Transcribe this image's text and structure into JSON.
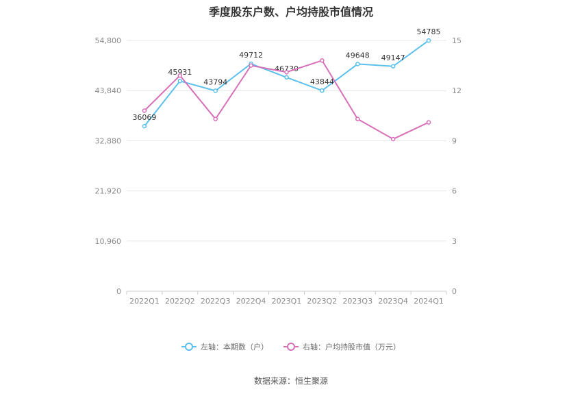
{
  "title": "季度股东户数、户均持股市值情况",
  "source": "数据来源：恒生聚源",
  "legend": [
    {
      "label": "左轴：本期数（户）",
      "color": "#5bc0eb"
    },
    {
      "label": "右轴：户均持股市值（万元）",
      "color": "#d670b8"
    }
  ],
  "chart_data": {
    "type": "line",
    "categories": [
      "2022Q1",
      "2022Q2",
      "2022Q3",
      "2022Q4",
      "2023Q1",
      "2023Q2",
      "2023Q3",
      "2023Q4",
      "2024Q1"
    ],
    "series": [
      {
        "name": "左轴：本期数（户）",
        "axis": "left",
        "color": "#5bc0eb",
        "values": [
          36069,
          45931,
          43794,
          49712,
          46730,
          43844,
          49648,
          49147,
          54785
        ],
        "labels": [
          "36069",
          "45931",
          "43794",
          "49712",
          "46730",
          "43844",
          "49648",
          "49147",
          "54785"
        ]
      },
      {
        "name": "右轴：户均持股市值（万元）",
        "axis": "right",
        "color": "#d670b8",
        "values": [
          10.8,
          12.9,
          10.3,
          13.5,
          13.1,
          13.8,
          10.3,
          9.1,
          10.1
        ]
      }
    ],
    "left_axis": {
      "ticks": [
        "0",
        "10,960",
        "21,920",
        "32,880",
        "43,840",
        "54,800"
      ],
      "ylim": [
        0,
        54800
      ]
    },
    "right_axis": {
      "ticks": [
        "0",
        "3",
        "6",
        "9",
        "12",
        "15"
      ],
      "ylim": [
        0,
        15
      ]
    },
    "grid": true,
    "legend_position": "bottom"
  }
}
